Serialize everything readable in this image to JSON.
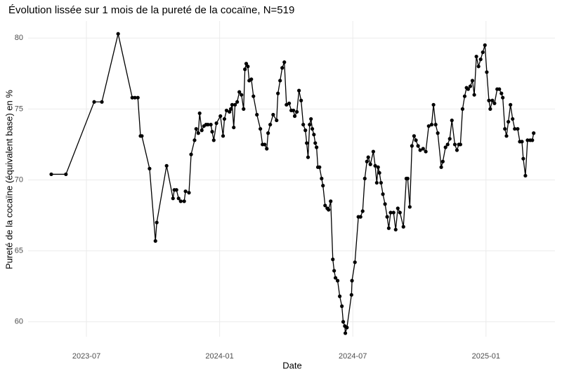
{
  "chart_data": {
    "type": "line",
    "title": "Évolution lissée sur 1 mois de la pureté de la cocaïne, N=519",
    "x_label": "Date",
    "y_label": "Pureté de la cocaïne (équivalent base) en %",
    "color": "#000000",
    "grid": true,
    "xlim": [
      2023.281,
      2025.259
    ],
    "ylim": [
      58.95,
      81.2
    ],
    "xticks": [
      {
        "value": 2023.5,
        "label": "2023-07"
      },
      {
        "value": 2024.0,
        "label": "2024-01"
      },
      {
        "value": 2024.5,
        "label": "2024-07"
      },
      {
        "value": 2025.0,
        "label": "2025-01"
      }
    ],
    "yticks": [
      60,
      65,
      70,
      75,
      80
    ],
    "x": [
      2023.368,
      2023.423,
      2023.529,
      2023.558,
      2023.619,
      2023.672,
      2023.682,
      2023.693,
      2023.703,
      2023.708,
      2023.737,
      2023.759,
      2023.764,
      2023.801,
      2023.825,
      2023.83,
      2023.838,
      2023.846,
      2023.854,
      2023.867,
      2023.872,
      2023.885,
      2023.893,
      2023.906,
      2023.912,
      2023.92,
      2023.925,
      2023.933,
      2023.941,
      2023.949,
      2023.956,
      2023.967,
      2023.972,
      2023.978,
      2023.988,
      2024.003,
      2024.013,
      2024.018,
      2024.026,
      2024.037,
      2024.042,
      2024.047,
      2024.053,
      2024.058,
      2024.066,
      2024.074,
      2024.082,
      2024.09,
      2024.095,
      2024.1,
      2024.106,
      2024.111,
      2024.119,
      2024.127,
      2024.14,
      2024.153,
      2024.161,
      2024.169,
      2024.177,
      2024.182,
      2024.19,
      2024.201,
      2024.214,
      2024.219,
      2024.227,
      2024.235,
      2024.243,
      2024.251,
      2024.261,
      2024.269,
      2024.277,
      2024.282,
      2024.29,
      2024.298,
      2024.306,
      2024.314,
      2024.322,
      2024.327,
      2024.332,
      2024.338,
      2024.343,
      2024.348,
      2024.354,
      2024.359,
      2024.364,
      2024.369,
      2024.375,
      2024.383,
      2024.388,
      2024.396,
      2024.404,
      2024.409,
      2024.417,
      2024.425,
      2024.43,
      2024.435,
      2024.443,
      2024.451,
      2024.459,
      2024.464,
      2024.47,
      2024.472,
      2024.478,
      2024.495,
      2024.497,
      2024.508,
      2024.521,
      2024.529,
      2024.537,
      2024.545,
      2024.553,
      2024.558,
      2024.566,
      2024.577,
      2024.584,
      2024.59,
      2024.595,
      2024.6,
      2024.606,
      2024.613,
      2024.621,
      2024.629,
      2024.635,
      2024.642,
      2024.653,
      2024.661,
      2024.669,
      2024.677,
      2024.69,
      2024.701,
      2024.706,
      2024.714,
      2024.722,
      2024.73,
      2024.737,
      2024.745,
      2024.753,
      2024.764,
      2024.774,
      2024.785,
      2024.796,
      2024.803,
      2024.811,
      2024.819,
      2024.832,
      2024.838,
      2024.848,
      2024.856,
      2024.864,
      2024.872,
      2024.883,
      2024.891,
      2024.898,
      2024.904,
      2024.912,
      2024.92,
      2024.927,
      2024.933,
      2024.941,
      2024.949,
      2024.956,
      2024.964,
      2024.972,
      2024.98,
      2024.988,
      2024.996,
      2025.003,
      2025.011,
      2025.016,
      2025.024,
      2025.032,
      2025.042,
      2025.05,
      2025.058,
      2025.063,
      2025.071,
      2025.077,
      2025.084,
      2025.092,
      2025.1,
      2025.108,
      2025.119,
      2025.127,
      2025.135,
      2025.14,
      2025.148,
      2025.156,
      2025.166,
      2025.174,
      2025.179
    ],
    "values": [
      70.4,
      70.4,
      75.5,
      75.5,
      80.3,
      75.8,
      75.8,
      75.8,
      73.1,
      73.1,
      70.8,
      65.7,
      67.0,
      71.0,
      68.7,
      69.3,
      69.3,
      68.7,
      68.5,
      68.5,
      69.2,
      69.1,
      71.8,
      72.8,
      73.6,
      73.3,
      74.7,
      73.5,
      73.8,
      73.9,
      73.9,
      73.9,
      73.4,
      72.8,
      74.0,
      74.5,
      73.1,
      74.3,
      74.9,
      74.8,
      75.0,
      75.3,
      73.7,
      75.3,
      75.5,
      76.2,
      76.0,
      75.0,
      77.8,
      78.2,
      78.0,
      77.0,
      77.1,
      75.9,
      74.6,
      73.6,
      72.5,
      72.5,
      72.2,
      73.3,
      73.9,
      74.6,
      74.2,
      76.1,
      77.0,
      77.9,
      78.3,
      75.3,
      75.4,
      74.9,
      74.9,
      74.5,
      74.8,
      76.3,
      75.6,
      73.9,
      73.5,
      72.6,
      71.6,
      73.9,
      74.3,
      73.6,
      73.2,
      72.6,
      72.3,
      70.9,
      70.9,
      70.1,
      69.6,
      68.2,
      68.0,
      67.9,
      68.5,
      64.4,
      63.6,
      63.1,
      62.9,
      61.8,
      61.1,
      60.0,
      59.7,
      59.2,
      59.6,
      61.9,
      62.9,
      64.2,
      67.4,
      67.4,
      67.8,
      70.1,
      71.3,
      71.6,
      71.1,
      72.0,
      71.0,
      69.8,
      70.9,
      70.5,
      69.8,
      69.0,
      68.3,
      67.4,
      66.6,
      67.7,
      67.7,
      66.5,
      68.0,
      67.7,
      66.7,
      70.1,
      70.1,
      68.1,
      72.4,
      73.1,
      72.8,
      72.4,
      72.1,
      72.2,
      72.0,
      73.8,
      73.9,
      75.3,
      73.9,
      73.3,
      70.9,
      71.3,
      72.3,
      72.5,
      72.9,
      74.2,
      72.5,
      72.1,
      72.5,
      72.5,
      75.0,
      75.9,
      76.5,
      76.4,
      76.6,
      77.0,
      76.0,
      78.7,
      78.0,
      78.5,
      79.0,
      79.5,
      77.6,
      75.6,
      75.0,
      75.6,
      75.4,
      76.4,
      76.4,
      76.1,
      75.8,
      73.6,
      73.1,
      74.1,
      75.3,
      74.3,
      73.6,
      73.6,
      72.7,
      72.7,
      71.5,
      70.3,
      72.8,
      72.8,
      72.8,
      73.3
    ]
  }
}
